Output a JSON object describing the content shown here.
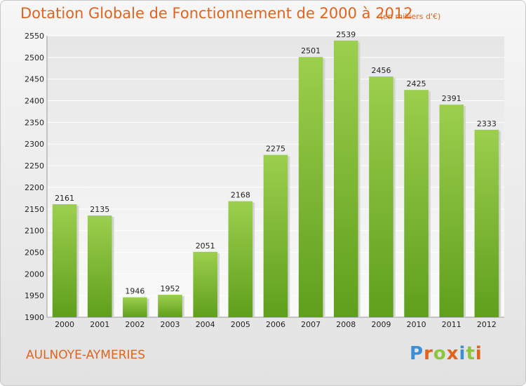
{
  "chart_data": {
    "type": "bar",
    "title": "Dotation Globale de Fonctionnement de 2000 à 2012",
    "subtitle": "(en milliers d'€)",
    "categories": [
      "2000",
      "2001",
      "2002",
      "2003",
      "2004",
      "2005",
      "2006",
      "2007",
      "2008",
      "2009",
      "2010",
      "2011",
      "2012"
    ],
    "values": [
      2161,
      2135,
      1946,
      1952,
      2051,
      2168,
      2275,
      2501,
      2539,
      2456,
      2425,
      2391,
      2333
    ],
    "ylim": [
      1900,
      2550
    ],
    "yticks": [
      1900,
      1950,
      2000,
      2050,
      2100,
      2150,
      2200,
      2250,
      2300,
      2350,
      2400,
      2450,
      2500,
      2550
    ],
    "grid": true,
    "bar_color": "#7cb82f",
    "xlabel": "",
    "ylabel": ""
  },
  "commune": "AULNOYE-AYMERIES",
  "logo": {
    "letters": [
      "P",
      "r",
      "o",
      "x",
      "i",
      "t",
      "i"
    ],
    "colors": [
      "#3a8fd6",
      "#e0641e",
      "#8cc63f",
      "#e0641e",
      "#3a8fd6",
      "#8cc63f",
      "#e0641e"
    ]
  }
}
